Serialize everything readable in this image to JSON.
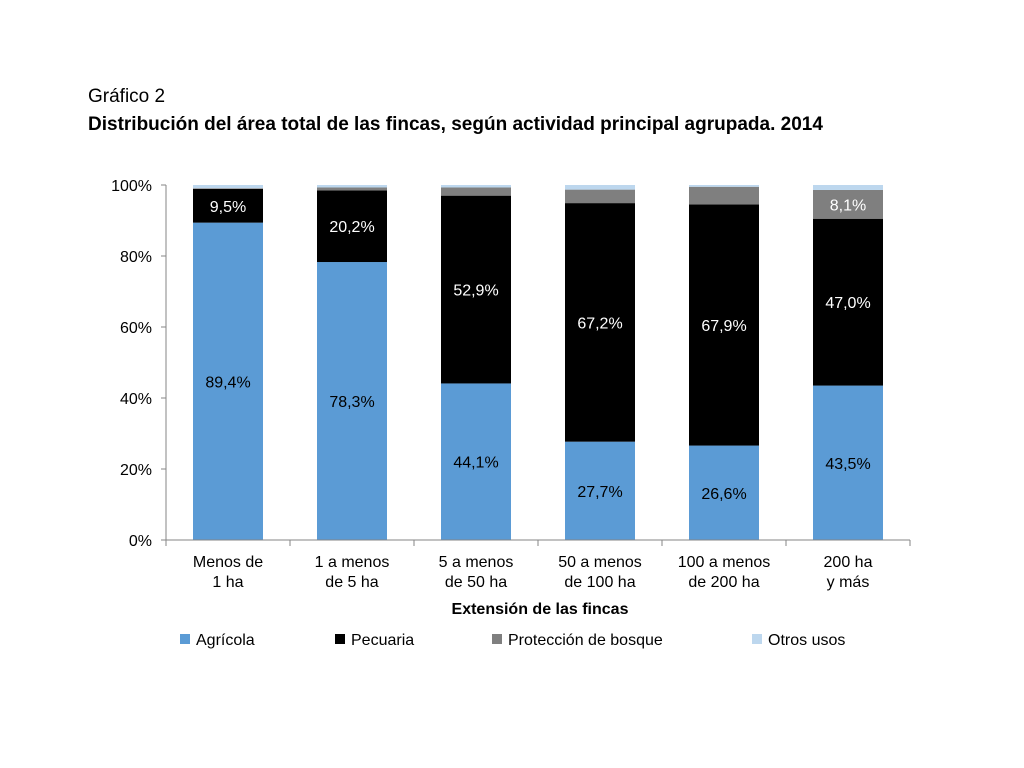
{
  "header": {
    "caption": "Gráfico 2",
    "title": "Distribución del área total de las fincas, según actividad principal agrupada. 2014"
  },
  "chart_data": {
    "type": "bar",
    "stacked": true,
    "percent": true,
    "categories": [
      [
        "Menos de",
        "1 ha"
      ],
      [
        "1 a menos",
        "de 5 ha"
      ],
      [
        "5 a menos",
        "de 50 ha"
      ],
      [
        "50 a menos",
        "de 100 ha"
      ],
      [
        "100 a menos",
        "de 200 ha"
      ],
      [
        "200 ha",
        "y más"
      ]
    ],
    "series": [
      {
        "name": "Agrícola",
        "color": "#5b9bd5",
        "values": [
          89.4,
          78.3,
          44.1,
          27.7,
          26.6,
          43.5
        ],
        "labels": [
          "89,4%",
          "78,3%",
          "44,1%",
          "27,7%",
          "26,6%",
          "43,5%"
        ],
        "label_color": "#000000"
      },
      {
        "name": "Pecuaria",
        "color": "#000000",
        "values": [
          9.5,
          20.2,
          52.9,
          67.2,
          67.9,
          47.0
        ],
        "labels": [
          "9,5%",
          "20,2%",
          "52,9%",
          "67,2%",
          "67,9%",
          "47,0%"
        ],
        "label_color": "#ffffff"
      },
      {
        "name": "Protección de bosque",
        "color": "#7f7f7f",
        "values": [
          0.2,
          0.8,
          2.3,
          3.8,
          5.0,
          8.1
        ],
        "labels": [
          "",
          "",
          "",
          "",
          "",
          "8,1%"
        ],
        "label_color": "#ffffff"
      },
      {
        "name": "Otros usos",
        "color": "#bdd7ee",
        "values": [
          0.9,
          0.7,
          0.7,
          1.3,
          0.5,
          1.4
        ],
        "labels": [
          "",
          "",
          "",
          "",
          "",
          ""
        ],
        "label_color": "#000000"
      }
    ],
    "xlabel": "Extensión de las fincas",
    "ylabel": "",
    "ylim": [
      0,
      100
    ],
    "yticks": [
      "0%",
      "20%",
      "40%",
      "60%",
      "80%",
      "100%"
    ],
    "grid": false,
    "legend_position": "bottom"
  }
}
